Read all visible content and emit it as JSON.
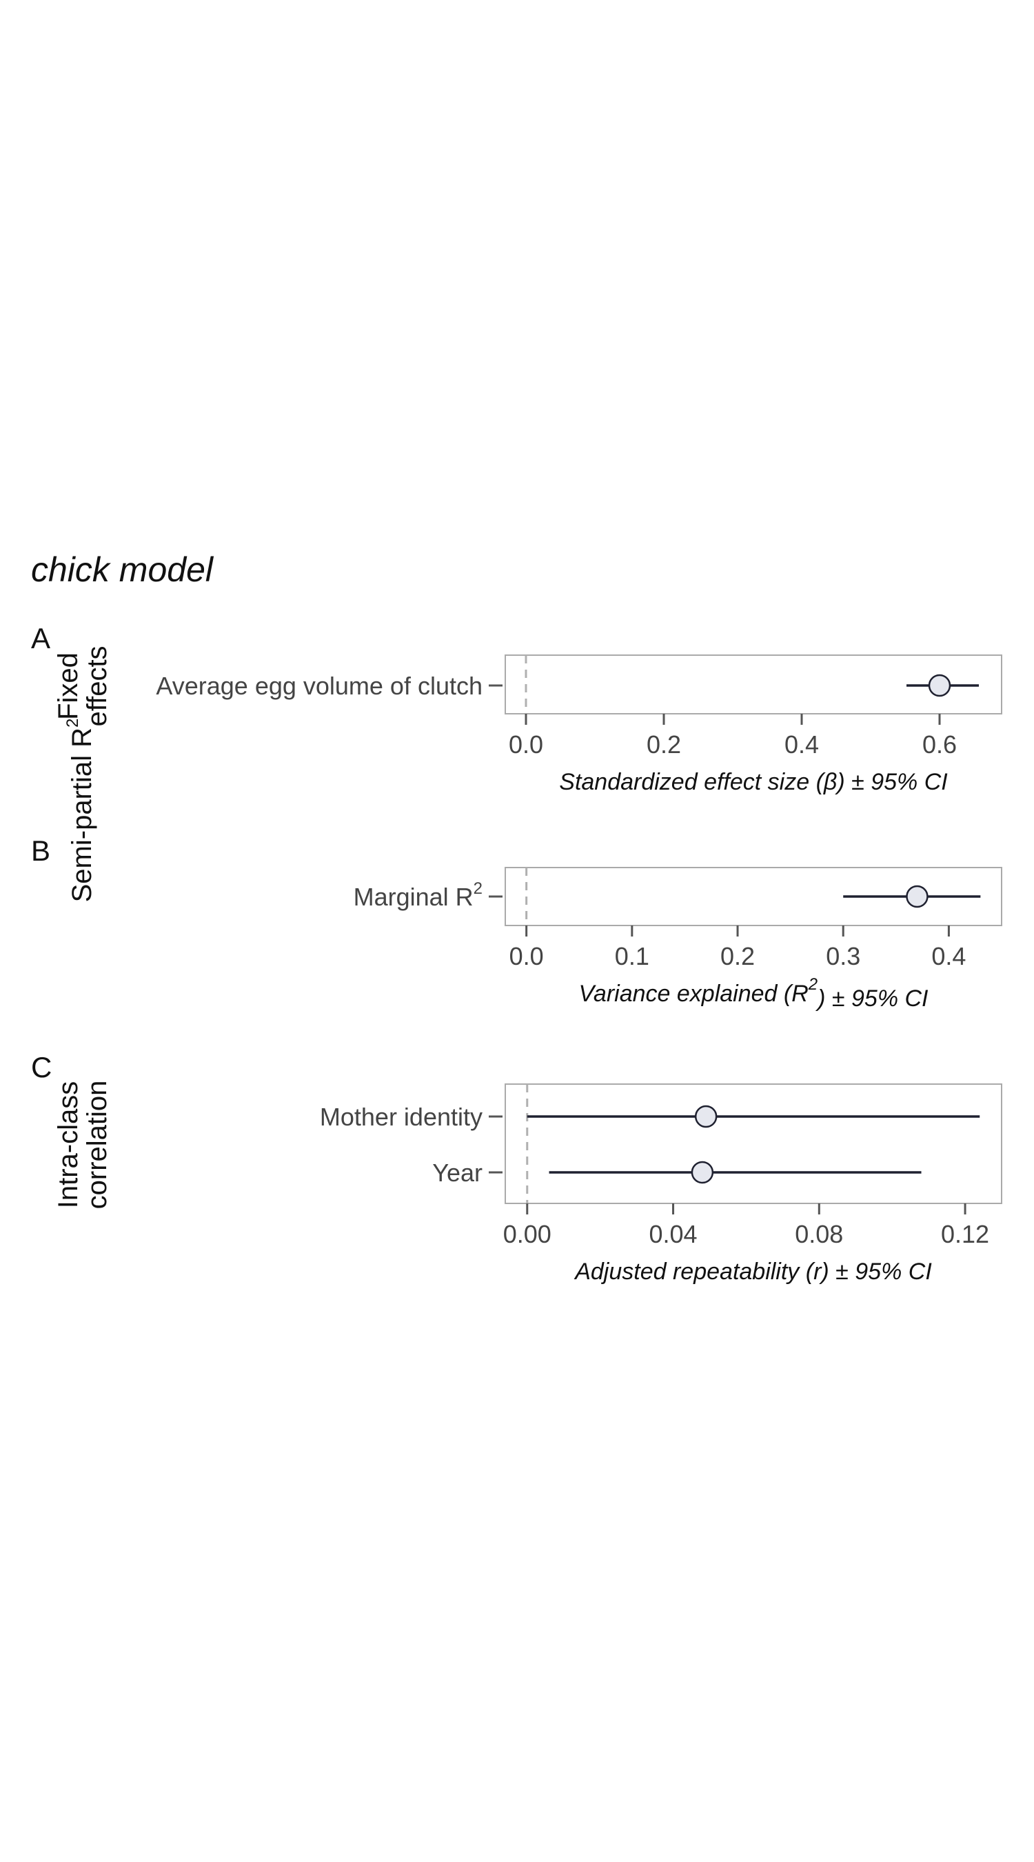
{
  "title": "chick model",
  "chart_data": [
    {
      "type": "forest",
      "panel": "A",
      "facet_label": [
        "Fixed",
        "effects"
      ],
      "rows": [
        {
          "label": "Average egg volume of clutch",
          "estimate": 0.6,
          "lower": 0.552,
          "upper": 0.657
        }
      ],
      "xlim": [
        -0.03,
        0.69
      ],
      "ticks": [
        "0.0",
        "0.2",
        "0.4",
        "0.6"
      ],
      "tick_values": [
        0.0,
        0.2,
        0.4,
        0.6
      ],
      "zero_line": 0,
      "xlabel": "Standardized effect size (β) ± 95% CI"
    },
    {
      "type": "forest",
      "panel": "B",
      "facet_label": [
        "Semi-partial R"
      ],
      "facet_label_sup": "2",
      "rows": [
        {
          "label": "Marginal R",
          "label_sup": "2",
          "estimate": 0.37,
          "lower": 0.3,
          "upper": 0.43
        }
      ],
      "xlim": [
        -0.02,
        0.45
      ],
      "ticks": [
        "0.0",
        "0.1",
        "0.2",
        "0.3",
        "0.4"
      ],
      "tick_values": [
        0.0,
        0.1,
        0.2,
        0.3,
        0.4
      ],
      "zero_line": 0,
      "xlabel": "Variance explained (R",
      "xlabel_sup": "2",
      "xlabel_tail": ") ± 95% CI"
    },
    {
      "type": "forest",
      "panel": "C",
      "facet_label": [
        "Intra-class",
        "correlation"
      ],
      "rows": [
        {
          "label": "Mother identity",
          "estimate": 0.049,
          "lower": 0.0,
          "upper": 0.124
        },
        {
          "label": "Year",
          "estimate": 0.048,
          "lower": 0.006,
          "upper": 0.108
        }
      ],
      "xlim": [
        -0.006,
        0.13
      ],
      "ticks": [
        "0.00",
        "0.04",
        "0.08",
        "0.12"
      ],
      "tick_values": [
        0.0,
        0.04,
        0.08,
        0.12
      ],
      "zero_line": 0,
      "xlabel": "Adjusted repeatability (r) ± 95% CI"
    }
  ],
  "colors": {
    "point_fill": "#e6e8ef",
    "point_stroke": "#1f2130",
    "ci_line": "#1f2130",
    "panel_border": "#aaaaaa",
    "zero_line": "#b0b0b0",
    "tick": "#555555"
  }
}
